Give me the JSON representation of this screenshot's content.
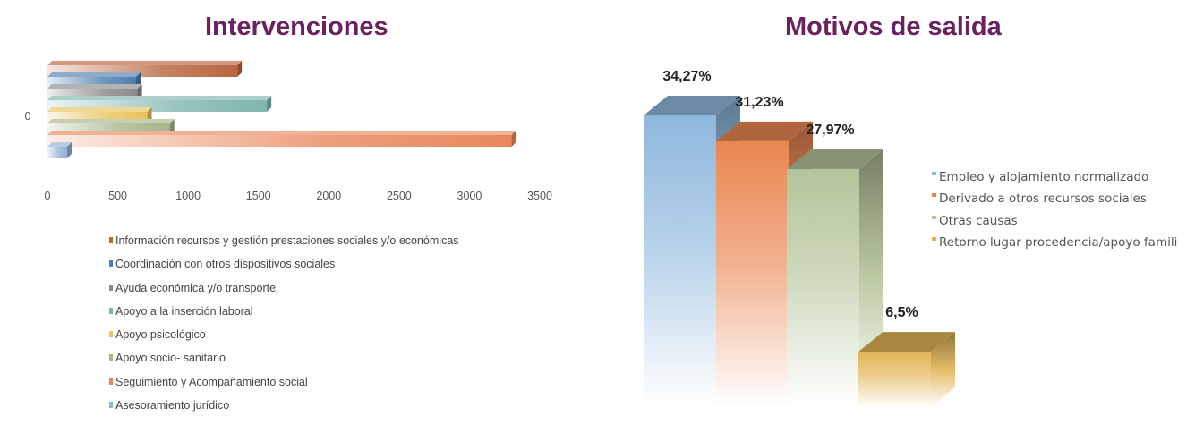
{
  "chart_data": [
    {
      "type": "bar",
      "orientation": "horizontal",
      "title": "Intervenciones",
      "y_category_label": "0",
      "xlim": [
        0,
        3500
      ],
      "xticks": [
        "0",
        "500",
        "1000",
        "1500",
        "2000",
        "2500",
        "3000",
        "3500"
      ],
      "series": [
        {
          "name": "Información recursos y gestión prestaciones sociales y/o económicas",
          "value": 1350,
          "color": "#b9653e"
        },
        {
          "name": "Coordinación con otros dispositivos sociales",
          "value": 630,
          "color": "#4f7fb0"
        },
        {
          "name": "Ayuda económica y/o transporte",
          "value": 640,
          "color": "#8a8a8a"
        },
        {
          "name": "Apoyo a la inserción laboral",
          "value": 1560,
          "color": "#7fb5b0"
        },
        {
          "name": "Apoyo psicológico",
          "value": 710,
          "color": "#e8c25a"
        },
        {
          "name": "Apoyo socio- sanitario",
          "value": 870,
          "color": "#a8b58a"
        },
        {
          "name": "Seguimiento y Acompañamiento social",
          "value": 3300,
          "color": "#e8875a"
        },
        {
          "name": "Asesoramiento jurídico",
          "value": 140,
          "color": "#8fb2d5"
        }
      ]
    },
    {
      "type": "bar",
      "title": "Motivos de salida",
      "series": [
        {
          "name": "Empleo y alojamiento normalizado",
          "value": 34.27,
          "label": "34,27%",
          "color": "#8fb8dd"
        },
        {
          "name": "Derivado a otros recursos sociales",
          "value": 31.23,
          "label": "31,23%",
          "color": "#ea8650"
        },
        {
          "name": "Otras causas",
          "value": 27.97,
          "label": "27,97%",
          "color": "#b4c49a"
        },
        {
          "name": "Retorno lugar procedencia/apoyo famili",
          "value": 6.5,
          "label": "6,5%",
          "color": "#e2b457"
        }
      ]
    }
  ]
}
